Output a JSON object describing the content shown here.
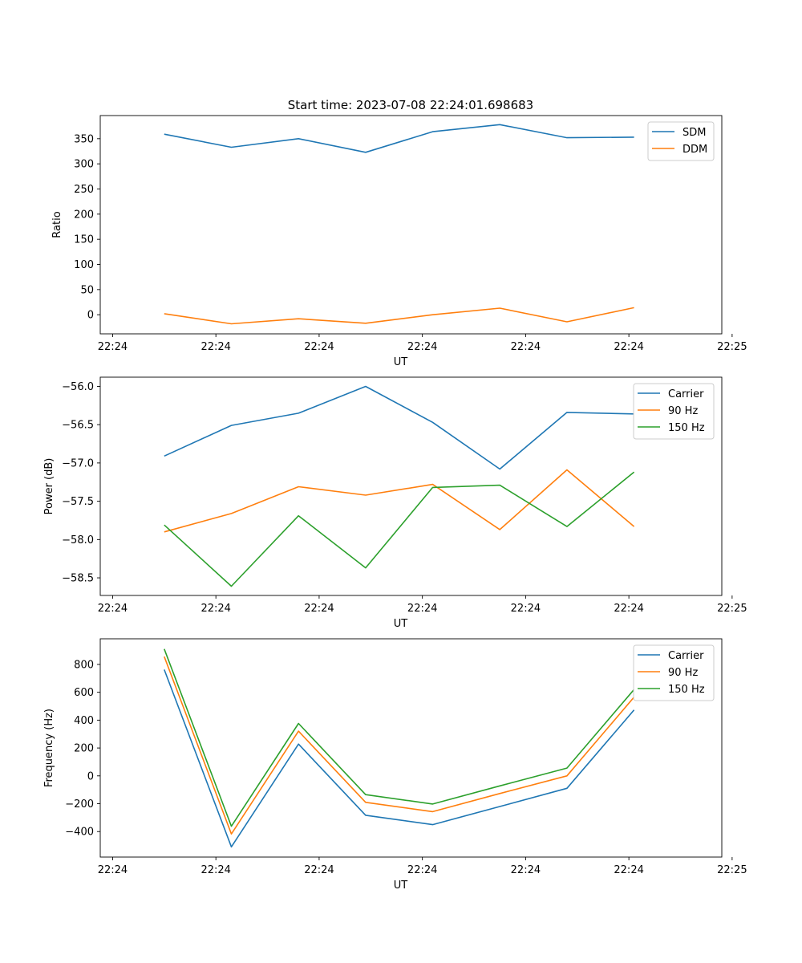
{
  "figure_title": "Start time: 2023-07-08 22:24:01.698683",
  "colors": {
    "c0": "#1f77b4",
    "c1": "#ff7f0e",
    "c2": "#2ca02c"
  },
  "chart_data": [
    {
      "type": "line",
      "title": "Start time: 2023-07-08 22:24:01.698683",
      "xlabel": "UT",
      "ylabel": "Ratio",
      "x": [
        0.5,
        1.15,
        1.8,
        2.45,
        3.1,
        3.75,
        4.4,
        5.05
      ],
      "xlim": [
        -0.12,
        5.9
      ],
      "ylim": [
        -38,
        396
      ],
      "xtick_values": [
        0,
        1,
        2,
        3,
        4,
        5,
        6
      ],
      "xtick_labels": [
        "22:24",
        "22:24",
        "22:24",
        "22:24",
        "22:24",
        "22:24",
        "22:25"
      ],
      "ytick_values": [
        0,
        50,
        100,
        150,
        200,
        250,
        300,
        350
      ],
      "ytick_labels": [
        "0",
        "50",
        "100",
        "150",
        "200",
        "250",
        "300",
        "350"
      ],
      "legend_position": "top-right",
      "series": [
        {
          "name": "SDM",
          "color": "#1f77b4",
          "values": [
            359,
            333,
            350,
            323,
            364,
            378,
            352,
            353
          ]
        },
        {
          "name": "DDM",
          "color": "#ff7f0e",
          "values": [
            2,
            -18,
            -8,
            -17,
            0,
            13,
            -14,
            14
          ]
        }
      ]
    },
    {
      "type": "line",
      "title": "",
      "xlabel": "UT",
      "ylabel": "Power (dB)",
      "x": [
        0.5,
        1.15,
        1.8,
        2.45,
        3.1,
        3.75,
        4.4,
        5.05
      ],
      "xlim": [
        -0.12,
        5.9
      ],
      "ylim": [
        -58.73,
        -55.88
      ],
      "xtick_values": [
        0,
        1,
        2,
        3,
        4,
        5,
        6
      ],
      "xtick_labels": [
        "22:24",
        "22:24",
        "22:24",
        "22:24",
        "22:24",
        "22:24",
        "22:25"
      ],
      "ytick_values": [
        -58.5,
        -58.0,
        -57.5,
        -57.0,
        -56.5,
        -56.0
      ],
      "ytick_labels": [
        "−58.5",
        "−58.0",
        "−57.5",
        "−57.0",
        "−56.5",
        "−56.0"
      ],
      "legend_position": "top-right",
      "series": [
        {
          "name": "Carrier",
          "color": "#1f77b4",
          "values": [
            -56.91,
            -56.51,
            -56.35,
            -56.0,
            -56.47,
            -57.08,
            -56.34,
            -56.36
          ]
        },
        {
          "name": "90 Hz",
          "color": "#ff7f0e",
          "values": [
            -57.9,
            -57.66,
            -57.31,
            -57.42,
            -57.28,
            -57.87,
            -57.09,
            -57.83
          ]
        },
        {
          "name": "150 Hz",
          "color": "#2ca02c",
          "values": [
            -57.81,
            -58.61,
            -57.69,
            -58.37,
            -57.32,
            -57.29,
            -57.83,
            -57.12
          ]
        }
      ]
    },
    {
      "type": "line",
      "title": "",
      "xlabel": "UT",
      "ylabel": "Frequency (Hz)",
      "x": [
        0.5,
        1.15,
        1.8,
        2.45,
        3.1,
        3.75,
        4.4,
        5.05
      ],
      "xlim": [
        -0.12,
        5.9
      ],
      "ylim": [
        -583,
        984
      ],
      "xtick_values": [
        0,
        1,
        2,
        3,
        4,
        5,
        6
      ],
      "xtick_labels": [
        "22:24",
        "22:24",
        "22:24",
        "22:24",
        "22:24",
        "22:24",
        "22:25"
      ],
      "ytick_values": [
        -400,
        -200,
        0,
        200,
        400,
        600,
        800
      ],
      "ytick_labels": [
        "−400",
        "−200",
        "0",
        "200",
        "400",
        "600",
        "800"
      ],
      "legend_position": "top-right",
      "series": [
        {
          "name": "Carrier",
          "color": "#1f77b4",
          "values": [
            763,
            -510,
            228,
            -283,
            -350,
            -220,
            -89,
            473
          ]
        },
        {
          "name": "90 Hz",
          "color": "#ff7f0e",
          "values": [
            856,
            -417,
            321,
            -190,
            -257,
            -127,
            0,
            565
          ]
        },
        {
          "name": "150 Hz",
          "color": "#2ca02c",
          "values": [
            911,
            -362,
            376,
            -135,
            -202,
            -72,
            56,
            620
          ]
        }
      ]
    }
  ]
}
